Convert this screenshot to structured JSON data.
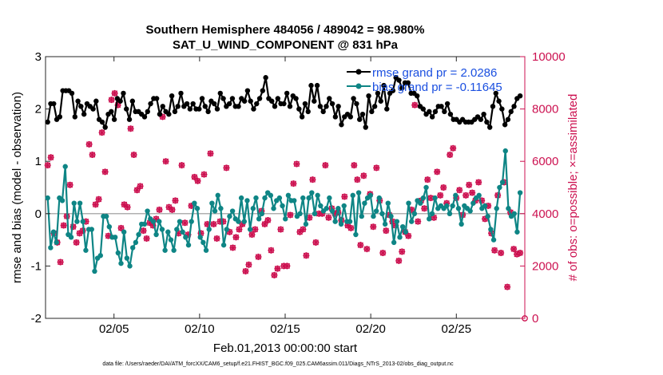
{
  "chart_data": {
    "type": "line",
    "title_line1": "Southern Hemisphere 484056 / 489042 = 98.980%",
    "title_line2": "SAT_U_WIND_COMPONENT @ 831 hPa",
    "xlabel": "Feb.01,2013 00:00:00 start",
    "ylabel_left": "rmse and bias (model - observation)",
    "ylabel_right": "# of obs: o=possible; ×=assimilated",
    "xlim": [
      1,
      29
    ],
    "ylim_left": [
      -2,
      3
    ],
    "ylim_right": [
      0,
      10000
    ],
    "x_ticks": [
      5,
      10,
      15,
      20,
      25
    ],
    "x_tick_labels": [
      "02/05",
      "02/10",
      "02/15",
      "02/20",
      "02/25"
    ],
    "y_ticks_left": [
      -2,
      -1,
      0,
      1,
      2,
      3
    ],
    "y_ticks_right": [
      0,
      2000,
      4000,
      6000,
      8000,
      10000
    ],
    "zero_line": 0,
    "colors": {
      "rmse": "#000000",
      "bias": "#0e8585",
      "obs": "#cc1150",
      "legend_text": "#1a4fe0",
      "zero_line": "#b0b0b0"
    },
    "legend": [
      {
        "label": "rmse grand pr = 2.0286",
        "color": "#000000"
      },
      {
        "label": "bias grand pr = -0.11645",
        "color": "#0e8585"
      }
    ],
    "series": [
      {
        "name": "rmse",
        "axis": "left",
        "values": [
          1.75,
          2.1,
          2.1,
          1.8,
          1.85,
          2.35,
          2.35,
          2.35,
          2.3,
          1.85,
          2.15,
          2.05,
          1.9,
          2.1,
          2.05,
          2.0,
          2.15,
          1.8,
          1.75,
          1.65,
          1.9,
          1.95,
          1.8,
          2.2,
          2.15,
          2.3,
          2.0,
          1.8,
          2.15,
          1.95,
          1.95,
          1.9,
          1.85,
          1.95,
          2.1,
          2.2,
          2.2,
          1.9,
          2.05,
          1.95,
          1.9,
          2.25,
          1.95,
          2.05,
          2.3,
          2.05,
          2.1,
          2.0,
          2.1,
          2.0,
          2.0,
          2.2,
          2.05,
          1.95,
          2.15,
          2.1,
          2.0,
          2.3,
          2.2,
          2.05,
          2.1,
          2.2,
          2.05,
          2.05,
          2.2,
          2.15,
          2.35,
          2.15,
          2.0,
          2.1,
          2.2,
          2.35,
          2.6,
          2.2,
          2.15,
          2.05,
          2.2,
          2.1,
          2.1,
          2.3,
          2.05,
          2.25,
          2.2,
          2.0,
          1.85,
          2.1,
          1.95,
          2.45,
          2.15,
          2.45,
          2.05,
          1.95,
          2.05,
          2.2,
          2.1,
          1.85,
          2.05,
          1.7,
          1.85,
          1.9,
          1.85,
          2.2,
          2.1,
          1.8,
          1.9,
          1.65,
          2.25,
          1.95,
          2.05,
          2.3,
          2.15,
          2.45,
          2.0,
          2.3,
          2.35,
          2.6,
          2.55,
          2.4,
          2.5,
          2.5,
          2.3,
          2.3,
          2.25,
          2.05,
          2.0,
          1.9,
          1.95,
          1.85,
          1.95,
          2.05,
          2.05,
          1.95,
          2.1,
          1.9,
          1.8,
          1.8,
          1.75,
          1.8,
          1.75,
          1.75,
          1.75,
          1.8,
          1.85,
          1.8,
          1.9,
          1.75,
          1.65,
          2.05,
          2.3,
          2.15,
          2.0,
          1.7,
          1.8,
          1.95,
          2.05,
          2.2,
          2.25
        ]
      },
      {
        "name": "bias",
        "axis": "left",
        "values": [
          0.3,
          -0.65,
          -0.35,
          -0.55,
          0.3,
          0.25,
          0.9,
          -0.4,
          -0.45,
          0.2,
          -0.15,
          0.2,
          -0.15,
          -0.7,
          -0.3,
          -0.3,
          -1.1,
          -0.85,
          -0.8,
          -0.05,
          -0.05,
          -0.25,
          -0.45,
          -0.45,
          -0.75,
          -0.95,
          -0.35,
          -0.85,
          -1.0,
          -0.65,
          -0.55,
          -0.4,
          -0.2,
          -0.2,
          0.05,
          -0.1,
          -0.15,
          -0.4,
          -0.15,
          -0.3,
          -0.7,
          -0.35,
          -0.5,
          -0.7,
          -0.3,
          -0.15,
          -0.35,
          -0.45,
          -0.6,
          -0.15,
          0.2,
          0.1,
          -0.45,
          -0.55,
          -0.7,
          -0.3,
          0.2,
          0.05,
          0.35,
          0.1,
          -0.6,
          -0.3,
          -0.05,
          0.05,
          -0.1,
          -0.15,
          0.3,
          -0.15,
          0.25,
          -0.3,
          0.1,
          0.3,
          -0.1,
          0.0,
          0.3,
          0.4,
          0.35,
          0.1,
          0.25,
          0.3,
          0.15,
          -0.1,
          0.35,
          0.25,
          0.25,
          -0.05,
          0.0,
          0.3,
          -0.2,
          0.3,
          0.4,
          0.0,
          0.35,
          0.15,
          0.05,
          0.1,
          0.3,
          0.05,
          -0.15,
          0.1,
          -0.2,
          0.15,
          -0.15,
          -0.15,
          0.35,
          -0.4,
          0.4,
          -0.05,
          0.2,
          0.3,
          0.35,
          -0.05,
          0.05,
          0.3,
          0.0,
          -0.2,
          0.2,
          -0.05,
          -0.55,
          -0.15,
          -0.45,
          -0.25,
          -0.35,
          0.2,
          -0.15,
          0.0,
          0.25,
          0.2,
          0.3,
          0.5,
          -0.1,
          0.0,
          0.3,
          0.1,
          0.15,
          0.1,
          0.15,
          0.0,
          0.15,
          0.35,
          0.1,
          -0.2,
          0.15,
          0.1,
          0.05,
          0.2,
          0.3,
          0.35,
          0.1,
          0.15,
          -0.05,
          -0.3,
          -0.5,
          0.1,
          0.5,
          0.6,
          1.2,
          0.1,
          -0.05,
          0.0,
          -0.35,
          0.4
        ]
      },
      {
        "name": "obs_possible",
        "axis": "right",
        "values": [
          5850,
          6150,
          3250,
          2900,
          2150,
          3550,
          3900,
          5100,
          3500,
          2900,
          3250,
          3350,
          3700,
          6650,
          6250,
          4350,
          4550,
          7100,
          5600,
          3150,
          8350,
          8600,
          8150,
          3450,
          4350,
          4250,
          7250,
          6250,
          4900,
          5050,
          3350,
          3050,
          3650,
          3550,
          3800,
          4150,
          7700,
          6000,
          4250,
          4150,
          4500,
          3250,
          5850,
          3650,
          3200,
          4300,
          5400,
          5250,
          3250,
          5500,
          3600,
          6300,
          3600,
          3050,
          3700,
          3700,
          5750,
          3300,
          2700,
          3100,
          3400,
          3600,
          1800,
          2050,
          3200,
          3400,
          2350,
          4100,
          3600,
          3750,
          2600,
          1650,
          1900,
          3400,
          2000,
          2000,
          3950,
          5150,
          5900,
          3300,
          3400,
          2400,
          3850,
          5300,
          2900,
          4000,
          4000,
          5850,
          3850,
          4200,
          4000,
          4050,
          3750,
          4650,
          3550,
          3450,
          5850,
          5300,
          2800,
          5450,
          2650,
          4750,
          3500,
          5750,
          4500,
          2500,
          3350,
          3950,
          3700,
          3550,
          2200,
          2550,
          3300,
          3150,
          4150,
          8150,
          3700,
          4500,
          4200,
          5300,
          4600,
          3850,
          5600,
          4700,
          5000,
          4400,
          6250,
          6500,
          4600,
          4900,
          3950,
          4700,
          5100,
          4800,
          4500,
          5200,
          4500,
          3800,
          4300,
          3250,
          2600,
          4700,
          2500,
          5200,
          1200,
          4050,
          2650,
          2450,
          2500
        ]
      },
      {
        "name": "obs_assimilated",
        "axis": "right",
        "values": [
          5850,
          6150,
          3250,
          2900,
          2150,
          3550,
          3900,
          5100,
          3500,
          2900,
          3250,
          3350,
          3700,
          6650,
          6250,
          4350,
          4550,
          7100,
          5600,
          3150,
          8350,
          8600,
          8150,
          3450,
          4350,
          4250,
          7250,
          6250,
          4900,
          5050,
          3350,
          3050,
          3650,
          3550,
          3800,
          4150,
          7700,
          6000,
          4250,
          4150,
          4500,
          3250,
          5850,
          3650,
          3200,
          4300,
          5400,
          5250,
          3250,
          5500,
          3600,
          6300,
          3600,
          3050,
          3700,
          3700,
          5750,
          3300,
          2700,
          3100,
          3400,
          3600,
          1800,
          2050,
          3200,
          3400,
          2350,
          4100,
          3600,
          3750,
          2600,
          1650,
          1900,
          3400,
          2000,
          2000,
          3950,
          5150,
          5900,
          3300,
          3400,
          2400,
          3850,
          5300,
          2900,
          4000,
          4000,
          5850,
          3850,
          4200,
          4000,
          4050,
          3750,
          4650,
          3550,
          3450,
          5850,
          5300,
          2800,
          5450,
          2650,
          4750,
          3500,
          5750,
          4500,
          2500,
          3350,
          3950,
          3700,
          3550,
          2200,
          2550,
          3300,
          3150,
          4150,
          8150,
          3700,
          4500,
          4200,
          5300,
          4600,
          3850,
          5600,
          4700,
          5000,
          4400,
          6250,
          6500,
          4600,
          4900,
          3950,
          4700,
          5100,
          4800,
          4500,
          5200,
          4500,
          3800,
          4300,
          3250,
          2600,
          4700,
          2500,
          5200,
          1200,
          4050,
          2650,
          2450,
          2500
        ]
      }
    ],
    "obs_end_marker": {
      "x": 29,
      "value": 0
    }
  },
  "footer": "data file: /Users/raeder/DAI/ATM_forcXX/CAM6_setup/f.e21.FHIST_BGC.f09_025.CAM6assim.011/Diags_NTrS_2013-02/obs_diag_output.nc"
}
